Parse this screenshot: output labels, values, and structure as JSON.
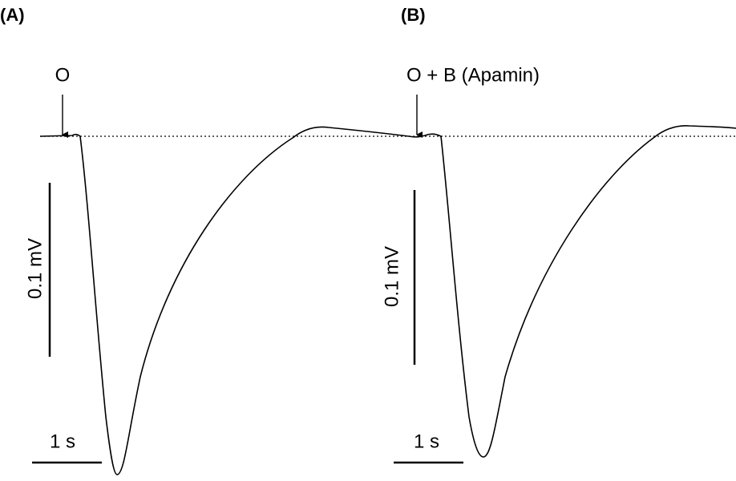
{
  "panels": [
    {
      "label": "(A)",
      "stimulus": "O",
      "scale_y": "0.1 mV",
      "scale_x": "1 s"
    },
    {
      "label": "(B)",
      "stimulus": "O + B (Apamin)",
      "scale_y": "0.1 mV",
      "scale_x": "1 s"
    }
  ]
}
